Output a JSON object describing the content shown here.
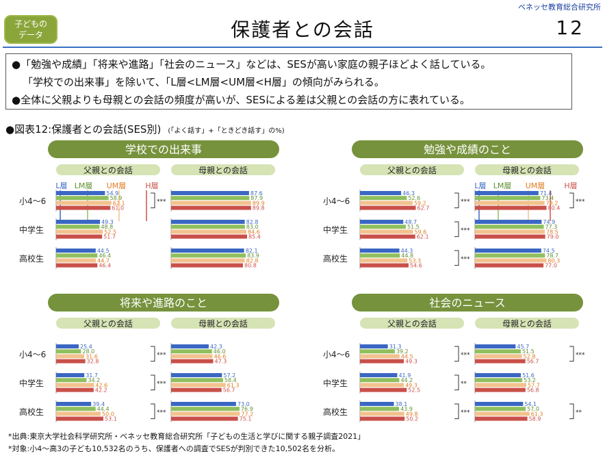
{
  "header": {
    "publisher": "ベネッセ教育総合研究所",
    "badge_line1": "子どもの",
    "badge_line2": "データ",
    "title": "保護者との会話",
    "page_number": "12"
  },
  "summary": {
    "line1": "●「勉強や成績」「将来や進路」「社会のニュース」などは、SESが高い家庭の親子ほどよく話している。",
    "line2": "「学校での出来事」を除いて、「L層<LM層<UM層<H層」の傾向がみられる。",
    "line3": "●全体に父親よりも母親との会話の頻度が高いが、SESによる差は父親との会話の方に表れている。"
  },
  "figure": {
    "title": "●図表12:保護者との会話(SES別)",
    "subtitle": "(「よく話す」+「ときどき話す」の%)"
  },
  "footer": {
    "source": "*出典:東京大学社会科学研究所・ベネッセ教育総合研究所「子どもの生活と学びに関する親子調査2021」",
    "note": "*対象:小4〜高3の子ども10,532名のうち、保護者への調査でSESが判別できた10,502名を分析。"
  },
  "colors": {
    "L": "#3b67c4",
    "LM": "#8fbf5e",
    "UM": "#f2c28e",
    "H": "#c9504a",
    "topic_pill": "#76923c",
    "sub_pill": "#d6e3b5"
  },
  "chart_data": {
    "type": "bar",
    "orientation": "horizontal",
    "unit": "%",
    "xlim": [
      0,
      100
    ],
    "series_names": [
      "L層",
      "LM層",
      "UM層",
      "H層"
    ],
    "categories": [
      "小4〜6",
      "中学生",
      "高校生"
    ],
    "panels": [
      {
        "topic": "学校での出来事",
        "father_label": "父親との会話",
        "mother_label": "母親との会話",
        "father": [
          [
            54.9,
            58.9,
            62.1,
            61.0
          ],
          [
            49.3,
            48.8,
            52.5,
            51.7
          ],
          [
            44.5,
            46.4,
            44.7,
            46.4
          ]
        ],
        "mother": [
          [
            87.6,
            87.9,
            89.9,
            89.8
          ],
          [
            82.8,
            83.0,
            84.6,
            85.4
          ],
          [
            82.1,
            83.9,
            82.8,
            80.8
          ]
        ],
        "father_sig": [
          "***",
          "",
          ""
        ],
        "mother_sig": [
          "",
          "",
          ""
        ],
        "legend_on": "father"
      },
      {
        "topic": "勉強や成績のこと",
        "father_label": "父親との会話",
        "mother_label": "母親との会話",
        "father": [
          [
            46.3,
            52.6,
            59.2,
            62.7
          ],
          [
            48.7,
            51.5,
            59.6,
            62.1
          ],
          [
            44.3,
            44.8,
            53.3,
            54.6
          ]
        ],
        "mother": [
          [
            71.4,
            73.4,
            78.2,
            80.4
          ],
          [
            74.9,
            77.3,
            78.5,
            79.0
          ],
          [
            74.5,
            78.7,
            80.3,
            77.0
          ]
        ],
        "father_sig": [
          "***",
          "***",
          "***"
        ],
        "mother_sig": [
          "***",
          "",
          ""
        ],
        "legend_on": "mother"
      },
      {
        "topic": "将来や進路のこと",
        "father_label": "父親との会話",
        "mother_label": "母親との会話",
        "father": [
          [
            25.4,
            28.0,
            31.6,
            32.8
          ],
          [
            31.7,
            34.2,
            42.6,
            42.2
          ],
          [
            39.4,
            44.4,
            50.0,
            53.1
          ]
        ],
        "mother": [
          [
            42.3,
            46.0,
            46.6,
            47.3
          ],
          [
            57.2,
            58.4,
            61.3,
            56.7
          ],
          [
            73.0,
            76.9,
            77.2,
            75.1
          ]
        ],
        "father_sig": [
          "***",
          "***",
          "***"
        ],
        "mother_sig": [
          "",
          "",
          ""
        ],
        "legend_on": ""
      },
      {
        "topic": "社会のニュース",
        "father_label": "父親との会話",
        "mother_label": "母親との会話",
        "father": [
          [
            31.3,
            39.2,
            44.5,
            49.3
          ],
          [
            41.9,
            44.2,
            49.3,
            52.5
          ],
          [
            38.1,
            43.9,
            49.8,
            50.2
          ]
        ],
        "mother": [
          [
            45.7,
            51.5,
            52.8,
            56.7
          ],
          [
            51.6,
            53.2,
            57.7,
            56.8
          ],
          [
            54.1,
            57.0,
            61.3,
            58.9
          ]
        ],
        "father_sig": [
          "***",
          "**",
          "***"
        ],
        "mother_sig": [
          "***",
          "",
          "**"
        ],
        "legend_on": ""
      }
    ]
  }
}
